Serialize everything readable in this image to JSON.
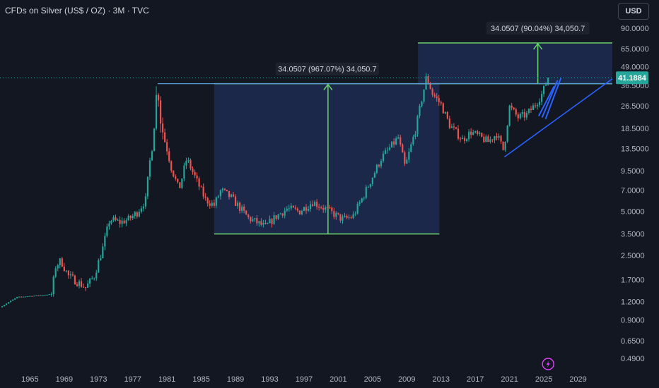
{
  "header": {
    "title": "CFDs on Silver (US$ / OZ) · 3M · TVC",
    "currency": "USD"
  },
  "colors": {
    "background": "#131722",
    "up": "#26a69a",
    "down": "#ef5350",
    "range_fill": "#1e2d55",
    "measure_line": "#6ad26a",
    "trend_line": "#2962ff",
    "last_price_bg": "#26a69a"
  },
  "chart_data": {
    "type": "candlestick",
    "scale": "log",
    "y_ticks": [
      "90.0000",
      "65.0000",
      "49.0000",
      "36.5000",
      "26.5000",
      "18.5000",
      "13.5000",
      "9.5000",
      "7.0000",
      "5.0000",
      "3.5000",
      "2.5000",
      "1.7000",
      "1.2000",
      "0.9000",
      "0.6500",
      "0.4900"
    ],
    "x_ticks": [
      "1965",
      "1969",
      "1973",
      "1977",
      "1981",
      "1985",
      "1989",
      "1993",
      "1997",
      "2001",
      "2005",
      "2009",
      "2013",
      "2017",
      "2021",
      "2025",
      "2029"
    ],
    "xlim": [
      1961.5,
      2033
    ],
    "ylim": [
      0.42,
      110
    ],
    "last_price": "41.1884",
    "anchors": [
      [
        1961.5,
        1.1
      ],
      [
        1963.5,
        1.29
      ],
      [
        1967.5,
        1.35
      ],
      [
        1968.0,
        2.1
      ],
      [
        1968.6,
        2.3
      ],
      [
        1969.5,
        1.8
      ],
      [
        1971.5,
        1.5
      ],
      [
        1972.5,
        1.8
      ],
      [
        1973.5,
        2.8
      ],
      [
        1974.3,
        4.4
      ],
      [
        1975.5,
        4.2
      ],
      [
        1976.5,
        4.4
      ],
      [
        1977.5,
        4.9
      ],
      [
        1978.5,
        6.0
      ],
      [
        1979.4,
        18.0
      ],
      [
        1979.9,
        38.0
      ],
      [
        1980.3,
        20.0
      ],
      [
        1981.5,
        10.0
      ],
      [
        1982.4,
        7.0
      ],
      [
        1983.3,
        11.5
      ],
      [
        1984.5,
        8.0
      ],
      [
        1985.5,
        6.0
      ],
      [
        1986.5,
        5.5
      ],
      [
        1987.3,
        7.0
      ],
      [
        1988.5,
        6.2
      ],
      [
        1990.5,
        4.5
      ],
      [
        1992.5,
        3.9
      ],
      [
        1993.7,
        4.6
      ],
      [
        1995.0,
        5.2
      ],
      [
        1996.5,
        5.0
      ],
      [
        1998.0,
        5.8
      ],
      [
        1999.5,
        5.2
      ],
      [
        2001.5,
        4.4
      ],
      [
        2002.7,
        4.6
      ],
      [
        2004.0,
        6.5
      ],
      [
        2006.0,
        11.5
      ],
      [
        2008.0,
        16.0
      ],
      [
        2008.8,
        10.0
      ],
      [
        2010.0,
        18.0
      ],
      [
        2011.3,
        42.0
      ],
      [
        2012.0,
        32.0
      ],
      [
        2013.0,
        27.0
      ],
      [
        2014.0,
        19.5
      ],
      [
        2015.5,
        15.5
      ],
      [
        2016.5,
        17.5
      ],
      [
        2018.5,
        15.0
      ],
      [
        2019.5,
        17.0
      ],
      [
        2020.3,
        13.0
      ],
      [
        2021.0,
        26.0
      ],
      [
        2022.0,
        22.0
      ],
      [
        2023.0,
        23.0
      ],
      [
        2024.0,
        27.0
      ],
      [
        2024.8,
        32.0
      ],
      [
        2025.5,
        41.19
      ]
    ],
    "annotations": {
      "range1": {
        "label": "34.0507 (967.07%) 34,050.7",
        "x_start": 1986.5,
        "x_end": 2012.8,
        "y_low": 3.5,
        "y_high": 37.5,
        "arrow_x": 1999.8
      },
      "range2": {
        "label": "34.0507 (90.04%) 34,050.7",
        "x_start": 2010.3,
        "x_end": 2034,
        "y_low": 37.5,
        "y_high": 71.3,
        "arrow_x": 2024.3
      },
      "support_line": {
        "y": 37.5
      },
      "trend_line": {
        "x1": 2020.4,
        "y1": 11.8,
        "x2": 2033,
        "y2": 40.5
      },
      "channel": [
        {
          "x1": 2024.4,
          "y1": 22.5,
          "x2": 2026.2,
          "y2": 36.0
        },
        {
          "x1": 2024.8,
          "y1": 22.0,
          "x2": 2026.6,
          "y2": 39.5
        },
        {
          "x1": 2025.2,
          "y1": 21.5,
          "x2": 2027.0,
          "y2": 41.0
        }
      ]
    }
  }
}
